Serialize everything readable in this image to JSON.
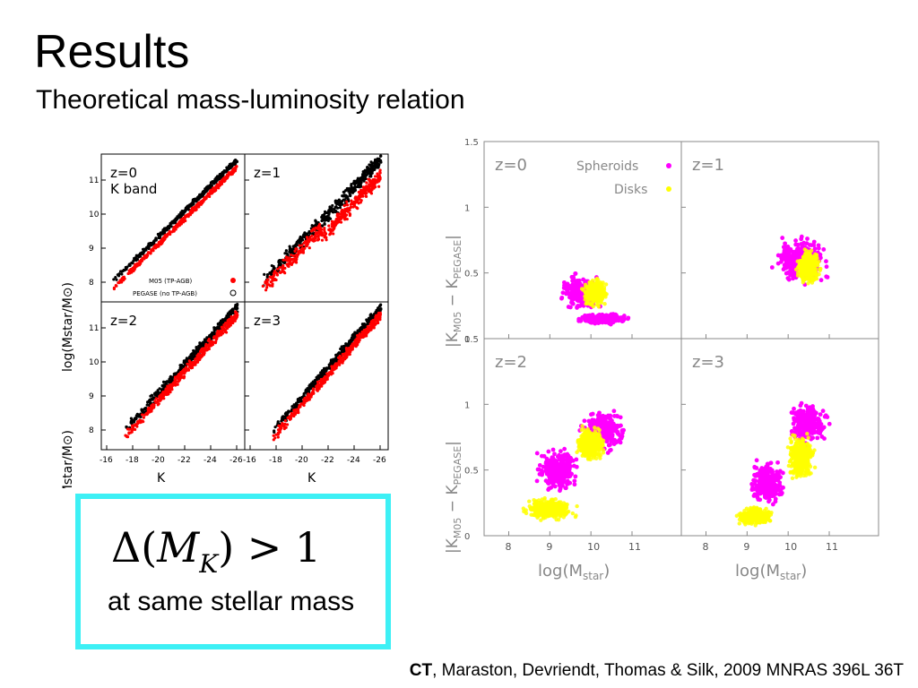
{
  "slide": {
    "title": "Results",
    "subtitle": "Theoretical mass-luminosity relation"
  },
  "formula": {
    "delta": "Δ(",
    "m": "M",
    "sub": "K",
    "rest": ") > 1",
    "note": "at same stellar mass"
  },
  "citation": {
    "author_bold": "CT",
    "rest": ", Maraston, Devriendt, Thomas & Silk, 2009 MNRAS  396L 36T"
  },
  "chart_data": [
    {
      "type": "scatter",
      "panels": [
        {
          "label": "z=0",
          "sublabel": "K band"
        },
        {
          "label": "z=1"
        },
        {
          "label": "z=2"
        },
        {
          "label": "z=3"
        }
      ],
      "ylabel": "log(Mstar/M⊙)",
      "xlabel": "K",
      "x_ticks": [
        "-16",
        "-18",
        "-20",
        "-22",
        "-24",
        "-26"
      ],
      "y_ticks": [
        "8",
        "9",
        "10",
        "11"
      ],
      "legend": [
        "M05 (TP-AGB)",
        "PEGASE (no TP-AGB)"
      ],
      "colors": {
        "M05": "#000000",
        "PEGASE": "#ff0000"
      },
      "series": [
        {
          "name": "M05 (TP-AGB)",
          "trend": [
            [
              -16,
              7.7
            ],
            [
              -25,
              11.3
            ]
          ]
        },
        {
          "name": "PEGASE (no TP-AGB)",
          "trend": [
            [
              -16,
              7.4
            ],
            [
              -25,
              11.0
            ]
          ]
        }
      ]
    },
    {
      "type": "scatter",
      "panels": [
        {
          "label": "z=0"
        },
        {
          "label": "z=1"
        },
        {
          "label": "z=2"
        },
        {
          "label": "z=3"
        }
      ],
      "ylabel_main": "|K",
      "ylabel_sub1": "M05",
      "ylabel_mid": " − K",
      "ylabel_sub2": "PEGASE",
      "ylabel_end": "|",
      "xlabel_main": "log(M",
      "xlabel_sub": "star",
      "xlabel_end": ")",
      "x_ticks": [
        "8",
        "9",
        "10",
        "11"
      ],
      "y_ticks": [
        "0",
        "0.5",
        "1",
        "1.5"
      ],
      "legend": [
        "Spheroids",
        "Disks"
      ],
      "colors": {
        "Spheroids": "#ff00ff",
        "Disks": "#ffff00"
      },
      "xlim": [
        7.4,
        12.2
      ],
      "ylim": [
        0,
        1.5
      ]
    }
  ]
}
